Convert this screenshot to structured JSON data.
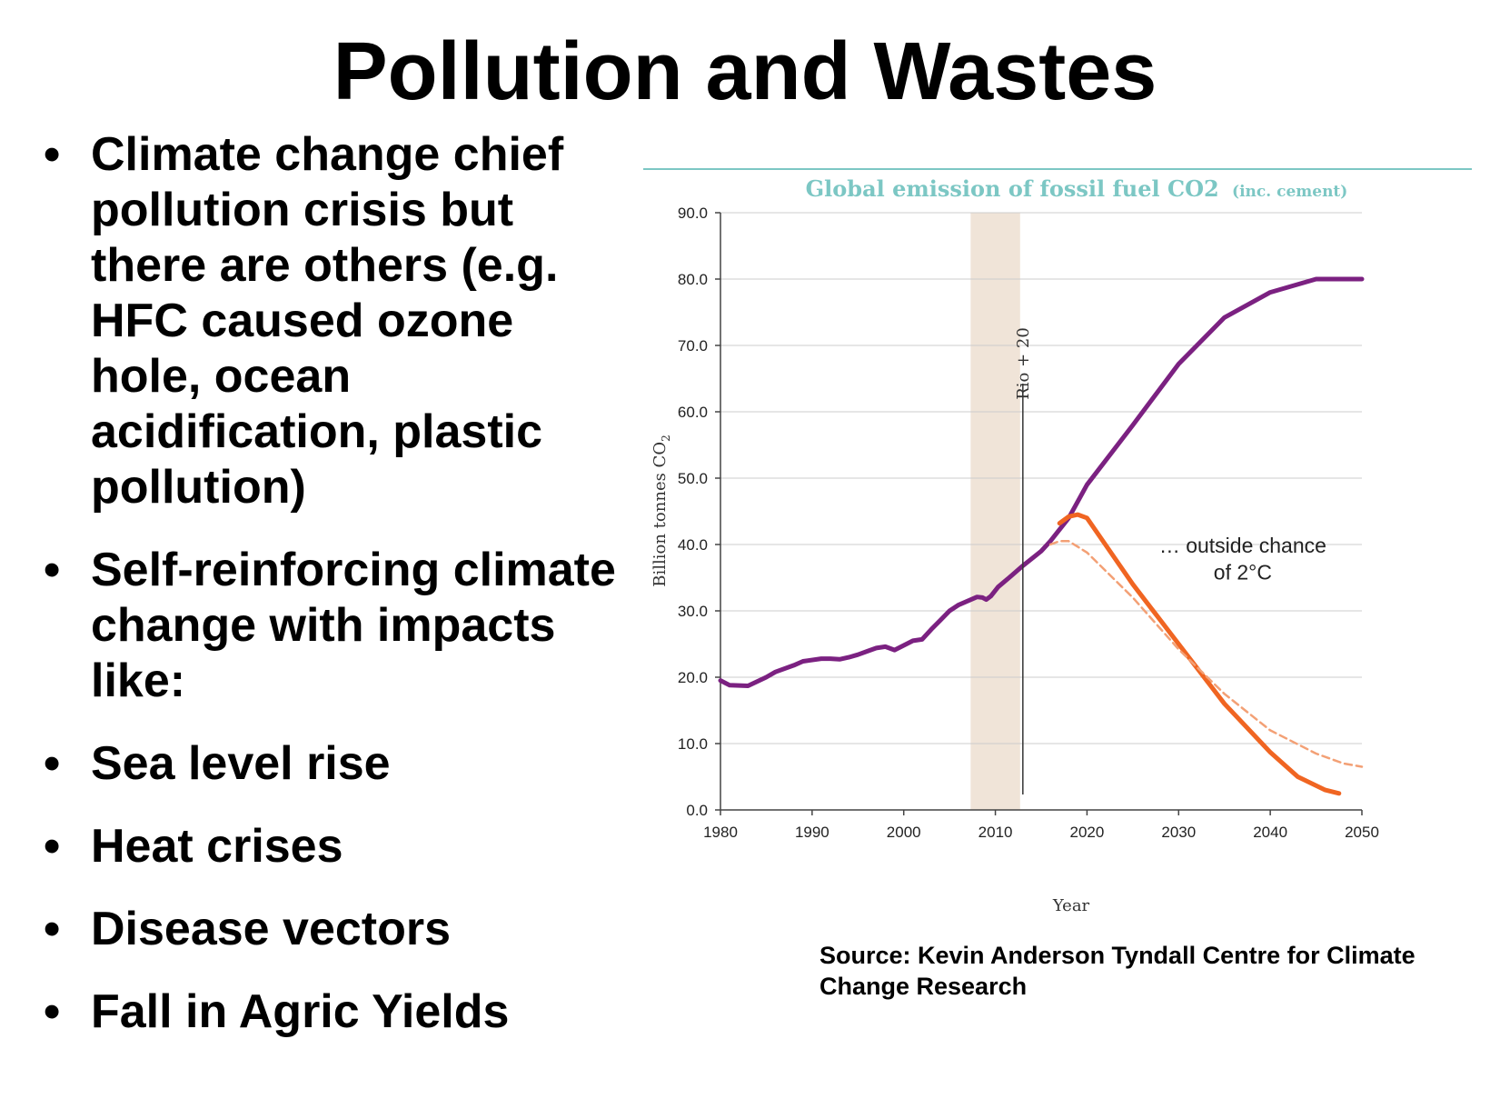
{
  "slide": {
    "title": "Pollution and Wastes",
    "bullets": [
      "Climate change chief pollution crisis but there are others (e.g. HFC caused ozone hole, ocean acidification, plastic pollution)",
      "Self-reinforcing climate change with impacts like:",
      "Sea level rise",
      "Heat crises",
      "Disease vectors",
      "Fall in Agric Yields"
    ],
    "source": "Source: Kevin Anderson Tyndall Centre for Climate Change Research"
  },
  "colors": {
    "title_teal": "#7cc7c4",
    "business_as_usual": "#7b2181",
    "two_degree_path": "#f06522",
    "two_degree_dashed": "#f3a075",
    "rio_band": "#f0e4d8",
    "grid": "#cccccc"
  },
  "chart_data": {
    "type": "line",
    "title": "Global emission of fossil fuel CO2",
    "title_suffix": "(inc. cement)",
    "xlabel": "Year",
    "ylabel": "Billion tonnes CO",
    "ylabel_subscript": "2",
    "xlim": [
      1980,
      2050
    ],
    "ylim": [
      0,
      90
    ],
    "xticks": [
      1980,
      1990,
      2000,
      2010,
      2020,
      2030,
      2040,
      2050
    ],
    "yticks": [
      0,
      10,
      20,
      30,
      40,
      50,
      60,
      70,
      80,
      90
    ],
    "ytick_labels": [
      "0.0",
      "10.0",
      "20.0",
      "30.0",
      "40.0",
      "50.0",
      "60.0",
      "70.0",
      "80.0",
      "90.0"
    ],
    "grid": true,
    "series": [
      {
        "key": "bau",
        "style": "solid",
        "x": [
          1980,
          1981,
          1983,
          1985,
          1986,
          1988,
          1989,
          1991,
          1992,
          1993,
          1994,
          1995,
          1996,
          1997,
          1998,
          1999,
          2000,
          2001,
          2002,
          2003,
          2004,
          2005,
          2006,
          2008,
          2008.6,
          2009,
          2009.5,
          2010.3,
          2011.5,
          2013,
          2015,
          2016,
          2018,
          2020,
          2025,
          2030,
          2035,
          2040,
          2045,
          2050
        ],
        "y": [
          19.5,
          18.8,
          18.7,
          20.0,
          20.8,
          21.8,
          22.4,
          22.8,
          22.8,
          22.7,
          23.0,
          23.4,
          23.9,
          24.4,
          24.6,
          24.1,
          24.8,
          25.5,
          25.7,
          27.2,
          28.6,
          30.0,
          30.9,
          32.1,
          32.0,
          31.7,
          32.2,
          33.6,
          35.0,
          36.8,
          39.0,
          40.5,
          44.0,
          49.0,
          58.0,
          67.2,
          74.2,
          78.0,
          80.0,
          80.0
        ]
      },
      {
        "key": "peak-2020",
        "style": "solid",
        "x": [
          2017,
          2018,
          2019,
          2020,
          2022,
          2025,
          2030,
          2035,
          2040,
          2043,
          2046,
          2047.5
        ],
        "y": [
          43.2,
          44.2,
          44.5,
          44.0,
          40.0,
          34.0,
          25.0,
          16.0,
          8.7,
          5.0,
          3.0,
          2.5
        ]
      },
      {
        "key": "peak-2018",
        "style": "dashed",
        "x": [
          2016,
          2017,
          2018,
          2020,
          2025,
          2030,
          2035,
          2040,
          2045,
          2048,
          2050
        ],
        "y": [
          40.0,
          40.5,
          40.5,
          38.8,
          32.0,
          24.2,
          17.5,
          12.0,
          8.5,
          7.0,
          6.5
        ]
      }
    ],
    "annotations": [
      {
        "text": "Rio + 20",
        "x": 2013,
        "orientation": "vertical"
      },
      {
        "text": "… outside chance",
        "x": 2037,
        "y": 38.8
      },
      {
        "text": "of 2°C",
        "x": 2037,
        "y": 34.7
      }
    ],
    "band": {
      "x_from": 2007.3,
      "x_to": 2012.7
    }
  }
}
